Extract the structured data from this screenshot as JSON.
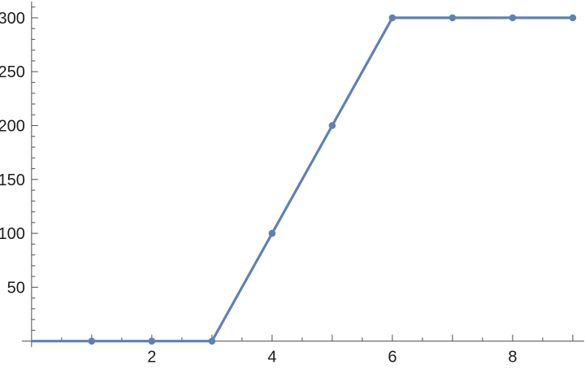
{
  "chart_data": {
    "type": "line",
    "title": "",
    "xlabel": "",
    "ylabel": "",
    "grid": false,
    "legend": "none",
    "series": [
      {
        "name": "series-1",
        "color": "#5E81B5",
        "marker": "disk",
        "x": [
          1,
          2,
          3,
          4,
          5,
          6,
          7,
          8,
          9
        ],
        "y": [
          0,
          0,
          0,
          100,
          200,
          300,
          300,
          300,
          300
        ],
        "line_start": {
          "x": 0,
          "y": 0
        }
      }
    ],
    "axes": {
      "style": "axes-crossing-at-origin",
      "xlim": [
        -0.16,
        9.19
      ],
      "ylim": [
        -5.5,
        315
      ],
      "x_major_tick_step": 1,
      "x_minor_tick_step": 0.5,
      "x_labeled_ticks": [
        "2",
        "4",
        "6",
        "8"
      ],
      "x_labeled_tick_values": [
        2,
        4,
        6,
        8
      ],
      "x_tick_max": 9,
      "y_major_tick_step": 50,
      "y_minor_tick_step": 10,
      "y_labeled_ticks": [
        "50",
        "100",
        "150",
        "200",
        "250",
        "300"
      ],
      "y_labeled_tick_values": [
        50,
        100,
        150,
        200,
        250,
        300
      ],
      "y_tick_max": 310,
      "axis_color": "#5e5e5e",
      "tick_label_color": "#1c1c1c",
      "tick_label_font_px": 20
    }
  }
}
